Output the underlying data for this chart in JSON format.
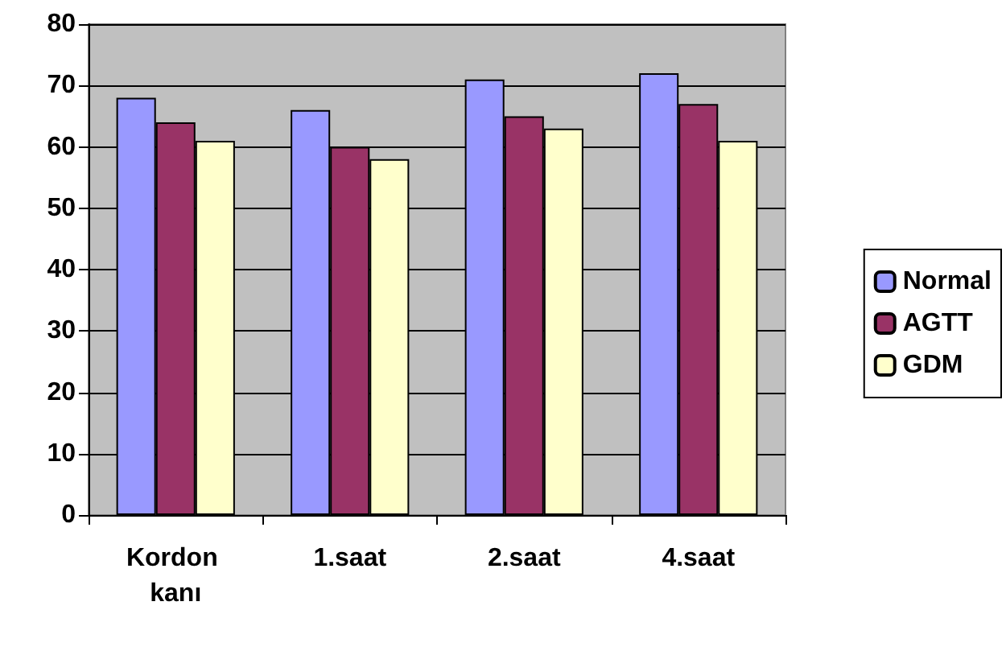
{
  "chart_data": {
    "type": "bar",
    "categories": [
      "Kordon kanı",
      "1.saat",
      "2.saat",
      "4.saat"
    ],
    "series": [
      {
        "name": "Normal",
        "color": "#9999ff",
        "values": [
          68,
          66,
          71,
          72
        ]
      },
      {
        "name": "AGTT",
        "color": "#993366",
        "values": [
          64,
          60,
          65,
          67
        ]
      },
      {
        "name": "GDM",
        "color": "#ffffcc",
        "values": [
          61,
          58,
          63,
          61
        ]
      }
    ],
    "ylim": [
      0,
      80
    ],
    "yticks": [
      0,
      10,
      20,
      30,
      40,
      50,
      60,
      70,
      80
    ],
    "grid": "y",
    "legend": "right"
  }
}
